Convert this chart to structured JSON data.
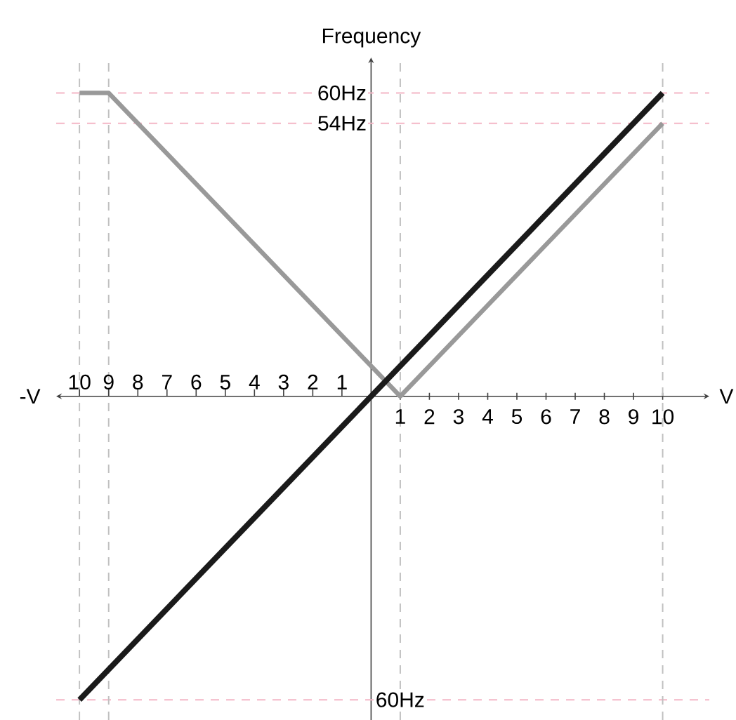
{
  "chart_data": {
    "type": "line",
    "xlabel": "V",
    "ylabel": "Frequency",
    "annotations": [
      "-V",
      {
        "text": "60Hz",
        "x": 0,
        "y": -60
      }
    ],
    "xlim": [
      -10.8,
      11.6
    ],
    "ylim": [
      -64,
      67
    ],
    "x2lim": [
      -10.8,
      11.6
    ],
    "x2ticks": [
      {
        "value": -10,
        "label": "10"
      },
      {
        "value": -9,
        "label": "9"
      },
      {
        "value": -8,
        "label": "8"
      },
      {
        "value": -7,
        "label": "7"
      },
      {
        "value": -6,
        "label": "6"
      },
      {
        "value": -5,
        "label": "5"
      },
      {
        "value": -4,
        "label": "4"
      },
      {
        "value": -3,
        "label": "3"
      },
      {
        "value": -2,
        "label": "2"
      },
      {
        "value": -1,
        "label": "1"
      }
    ],
    "xticks": [
      1,
      2,
      3,
      4,
      5,
      6,
      7,
      8,
      9,
      10
    ],
    "yticks": [
      {
        "value": 60,
        "label": "60Hz"
      },
      {
        "value": 54,
        "label": "54Hz"
      }
    ],
    "line_style": "solid",
    "ref_lines": [
      {
        "axis": "y",
        "value": 60,
        "color": "#f4b6c6",
        "line_style": "dashed"
      },
      {
        "axis": "y",
        "value": 54,
        "color": "#f4b6c6",
        "line_style": "dashed"
      },
      {
        "axis": "y",
        "value": -60,
        "color": "#f4b6c6",
        "line_style": "dashed"
      },
      {
        "axis": "x",
        "value": -10,
        "color": "#c0c0c0",
        "line_style": "dashed"
      },
      {
        "axis": "x",
        "value": -9,
        "color": "#c0c0c0",
        "line_style": "dashed"
      },
      {
        "axis": "x",
        "value": 1,
        "color": "#c0c0c0",
        "line_style": "dashed"
      },
      {
        "axis": "x",
        "value": 10,
        "color": "#c0c0c0",
        "line_style": "dashed"
      }
    ],
    "series": [
      {
        "color": "#999999",
        "x": [
          -10,
          -9,
          1,
          10
        ],
        "values": [
          60,
          60,
          0,
          54
        ]
      },
      {
        "color": "#1a1a1a",
        "x": [
          -10,
          10
        ],
        "values": [
          -60,
          60
        ]
      }
    ]
  }
}
